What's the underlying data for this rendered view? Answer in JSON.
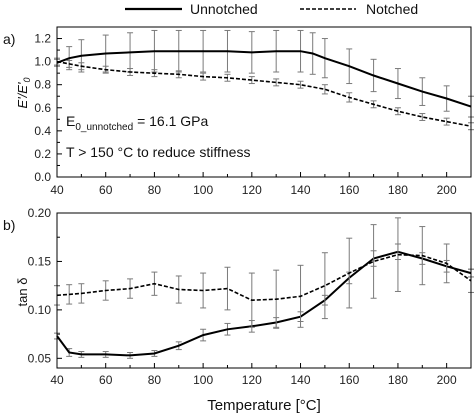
{
  "legend": {
    "solid": "Unnotched",
    "dashed": "Notched"
  },
  "xlabel": "Temperature [°C]",
  "chart_data": [
    {
      "type": "line",
      "panel_label": "a)",
      "ylabel": "E'/E'",
      "ylabel_sub": "0",
      "xlim": [
        40,
        210
      ],
      "ylim": [
        0,
        1.3
      ],
      "yticks": [
        0.0,
        0.2,
        0.4,
        0.6,
        0.8,
        1.0,
        1.2
      ],
      "xticks": [
        40,
        60,
        80,
        100,
        120,
        140,
        160,
        180,
        200
      ],
      "annotations": [
        "E",
        "0_unnotched",
        " = 16.1 GPa",
        "T > 150 °C to reduce stiffness"
      ],
      "series": [
        {
          "name": "Unnotched",
          "style": "solid",
          "x": [
            40,
            45,
            50,
            60,
            70,
            80,
            90,
            100,
            110,
            120,
            130,
            140,
            145,
            150,
            160,
            170,
            180,
            190,
            200,
            210
          ],
          "y": [
            0.99,
            1.03,
            1.05,
            1.07,
            1.08,
            1.09,
            1.09,
            1.09,
            1.09,
            1.08,
            1.09,
            1.09,
            1.07,
            1.03,
            0.96,
            0.88,
            0.81,
            0.74,
            0.68,
            0.61
          ],
          "err": [
            0.03,
            0.1,
            0.14,
            0.16,
            0.17,
            0.18,
            0.18,
            0.18,
            0.18,
            0.18,
            0.18,
            0.18,
            0.18,
            0.17,
            0.15,
            0.14,
            0.13,
            0.12,
            0.11,
            0.09
          ]
        },
        {
          "name": "Notched",
          "style": "dashed",
          "x": [
            40,
            45,
            50,
            60,
            70,
            80,
            90,
            100,
            110,
            120,
            130,
            140,
            150,
            160,
            170,
            180,
            190,
            200,
            210
          ],
          "y": [
            1.0,
            0.98,
            0.96,
            0.93,
            0.91,
            0.9,
            0.89,
            0.87,
            0.86,
            0.84,
            0.82,
            0.8,
            0.76,
            0.69,
            0.63,
            0.57,
            0.52,
            0.48,
            0.44
          ],
          "err": [
            0.03,
            0.03,
            0.03,
            0.03,
            0.03,
            0.03,
            0.03,
            0.03,
            0.03,
            0.03,
            0.03,
            0.03,
            0.04,
            0.04,
            0.03,
            0.03,
            0.03,
            0.03,
            0.03
          ]
        }
      ]
    },
    {
      "type": "line",
      "panel_label": "b)",
      "ylabel": "tan δ",
      "xlim": [
        40,
        210
      ],
      "ylim": [
        0.04,
        0.2
      ],
      "yticks": [
        0.05,
        0.1,
        0.15,
        0.2
      ],
      "xticks": [
        40,
        60,
        80,
        100,
        120,
        140,
        160,
        180,
        200
      ],
      "series": [
        {
          "name": "Unnotched",
          "style": "solid",
          "x": [
            40,
            45,
            50,
            60,
            70,
            80,
            90,
            100,
            110,
            120,
            130,
            140,
            150,
            160,
            170,
            180,
            190,
            200,
            210
          ],
          "y": [
            0.073,
            0.056,
            0.054,
            0.054,
            0.053,
            0.055,
            0.063,
            0.074,
            0.08,
            0.083,
            0.087,
            0.093,
            0.11,
            0.133,
            0.153,
            0.16,
            0.153,
            0.145,
            0.138
          ],
          "err": [
            0.003,
            0.004,
            0.003,
            0.003,
            0.003,
            0.003,
            0.004,
            0.006,
            0.006,
            0.006,
            0.005,
            0.005,
            0.005,
            0.006,
            0.008,
            0.008,
            0.006,
            0.006,
            0.004
          ]
        },
        {
          "name": "Notched",
          "style": "dashed",
          "x": [
            40,
            45,
            50,
            60,
            70,
            80,
            90,
            100,
            110,
            120,
            130,
            140,
            150,
            160,
            170,
            180,
            190,
            200,
            210
          ],
          "y": [
            0.115,
            0.116,
            0.117,
            0.12,
            0.122,
            0.127,
            0.121,
            0.12,
            0.122,
            0.11,
            0.111,
            0.114,
            0.125,
            0.138,
            0.15,
            0.157,
            0.156,
            0.148,
            0.13
          ],
          "err": [
            0.01,
            0.01,
            0.01,
            0.01,
            0.01,
            0.012,
            0.014,
            0.018,
            0.022,
            0.028,
            0.03,
            0.032,
            0.034,
            0.036,
            0.038,
            0.038,
            0.03,
            0.02,
            0.012
          ]
        }
      ]
    }
  ]
}
